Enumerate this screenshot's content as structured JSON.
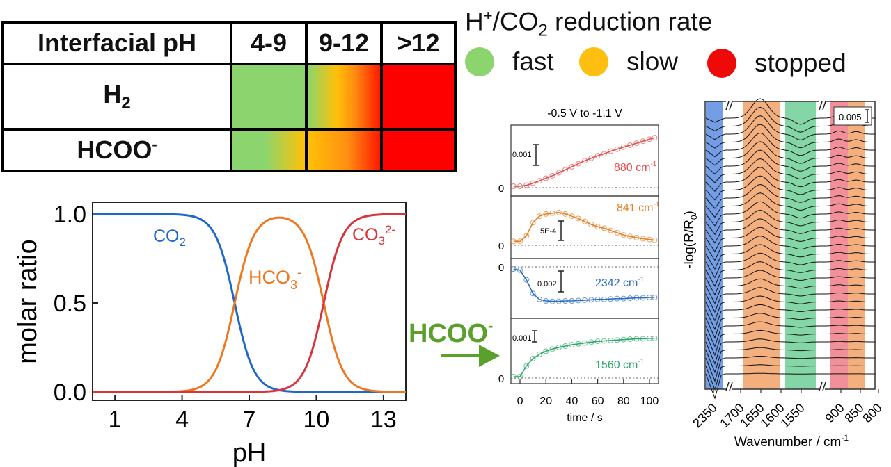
{
  "table": {
    "header": [
      "Interfacial pH",
      "4-9",
      "9-12",
      ">12"
    ],
    "rows": [
      {
        "label": "H",
        "sub": "2",
        "sup": "",
        "rates": [
          "fast",
          "slow",
          "stopped"
        ]
      },
      {
        "label": "HCOO",
        "sub": "",
        "sup": "-",
        "rates": [
          "fast",
          "slow",
          "stopped"
        ]
      }
    ]
  },
  "legend": {
    "title_main": "H",
    "title_sup": "+",
    "title_mid": "/CO",
    "title_sub": "2",
    "title_end": " reduction rate",
    "items": [
      {
        "label": "fast",
        "color": "#8cd56e"
      },
      {
        "label": "slow",
        "color": "#ffbf10"
      },
      {
        "label": "stopped",
        "color": "#ef0a0a"
      }
    ]
  },
  "arrow_label": "HCOO",
  "arrow_label_sup": "-",
  "arrow_color": "#5aa02c",
  "chart_data": [
    {
      "type": "line",
      "xlabel": "pH",
      "ylabel": "molar ratio",
      "xlim": [
        0,
        14
      ],
      "ylim": [
        0,
        1
      ],
      "xticks": [
        1,
        4,
        7,
        10,
        13
      ],
      "yticks": [
        "0.0",
        "0.5",
        "1.0"
      ],
      "pKa1": 6.35,
      "pKa2": 10.33,
      "series": [
        {
          "name": "CO",
          "sub": "2",
          "sup": "",
          "color": "#1f68c9"
        },
        {
          "name": "HCO",
          "sub": "3",
          "sup": "-",
          "color": "#ee7722"
        },
        {
          "name": "CO",
          "sub": "3",
          "sup": "2-",
          "color": "#d8343c"
        }
      ]
    },
    {
      "type": "line",
      "title": "-0.5 V to -1.1 V",
      "xlabel": "time / s",
      "xlim": [
        -7,
        107
      ],
      "xticks": [
        0,
        20,
        40,
        60,
        80,
        100
      ],
      "panels": [
        {
          "label": "880 cm",
          "label_sup": "-1",
          "color": "#e0504c",
          "scale": "0.001",
          "zero": "0",
          "t": [
            -5,
            0,
            5,
            10,
            15,
            20,
            25,
            30,
            35,
            40,
            45,
            50,
            55,
            60,
            65,
            70,
            75,
            80,
            85,
            90,
            95,
            100,
            104
          ],
          "v": [
            0,
            0,
            0.02,
            0.06,
            0.11,
            0.16,
            0.21,
            0.27,
            0.33,
            0.39,
            0.45,
            0.51,
            0.56,
            0.61,
            0.65,
            0.7,
            0.74,
            0.78,
            0.82,
            0.86,
            0.9,
            0.94,
            0.97
          ]
        },
        {
          "label": "841 cm",
          "label_sup": "-1",
          "color": "#e67e22",
          "scale": "5E-4",
          "zero": "0",
          "t": [
            -5,
            0,
            5,
            10,
            15,
            20,
            25,
            30,
            35,
            40,
            45,
            50,
            55,
            60,
            65,
            70,
            75,
            80,
            85,
            90,
            95,
            100,
            104
          ],
          "v": [
            0.05,
            0.05,
            0.2,
            0.55,
            0.72,
            0.78,
            0.8,
            0.82,
            0.78,
            0.72,
            0.66,
            0.58,
            0.5,
            0.44,
            0.4,
            0.34,
            0.28,
            0.22,
            0.18,
            0.15,
            0.12,
            0.1,
            0.08
          ]
        },
        {
          "label": "2342 cm",
          "label_sup": "-1",
          "color": "#2b6cc0",
          "scale": "0.002",
          "zero": "0",
          "t": [
            -5,
            0,
            5,
            10,
            15,
            20,
            25,
            30,
            35,
            40,
            45,
            50,
            55,
            60,
            65,
            70,
            75,
            80,
            85,
            90,
            95,
            100,
            104
          ],
          "v": [
            0.98,
            0.95,
            0.7,
            0.35,
            0.2,
            0.16,
            0.15,
            0.15,
            0.16,
            0.16,
            0.17,
            0.18,
            0.19,
            0.2,
            0.2,
            0.21,
            0.22,
            0.22,
            0.23,
            0.24,
            0.24,
            0.25,
            0.25
          ]
        },
        {
          "label": "1560 cm",
          "label_sup": "-1",
          "color": "#2ea86a",
          "scale": "0.001",
          "zero": "0",
          "t": [
            -5,
            0,
            5,
            10,
            15,
            20,
            25,
            30,
            35,
            40,
            45,
            50,
            55,
            60,
            65,
            70,
            75,
            80,
            85,
            90,
            95,
            100,
            104
          ],
          "v": [
            0,
            0,
            0.25,
            0.42,
            0.52,
            0.59,
            0.64,
            0.68,
            0.71,
            0.74,
            0.76,
            0.78,
            0.8,
            0.82,
            0.83,
            0.84,
            0.85,
            0.86,
            0.87,
            0.88,
            0.88,
            0.89,
            0.89
          ]
        }
      ]
    },
    {
      "type": "line",
      "xlabel": "Wavenumber / cm",
      "xlabel_sup": "-1",
      "ylabel": "-log(R/R",
      "ylabel_sub": "0",
      "ylabel_end": ")",
      "xticks": [
        "2350",
        "1700",
        "1650",
        "1600",
        "1550",
        "900",
        "850",
        "800"
      ],
      "scale": "0.005",
      "spectra_count": 33,
      "bands": [
        {
          "center": "2342",
          "color": "#5b8de0"
        },
        {
          "center": "1653",
          "color": "#f2a169"
        },
        {
          "center": "1560",
          "color": "#6fcf97"
        },
        {
          "center": "880",
          "color": "#ef7d86"
        },
        {
          "center": "841",
          "color": "#f2a169"
        }
      ]
    }
  ]
}
